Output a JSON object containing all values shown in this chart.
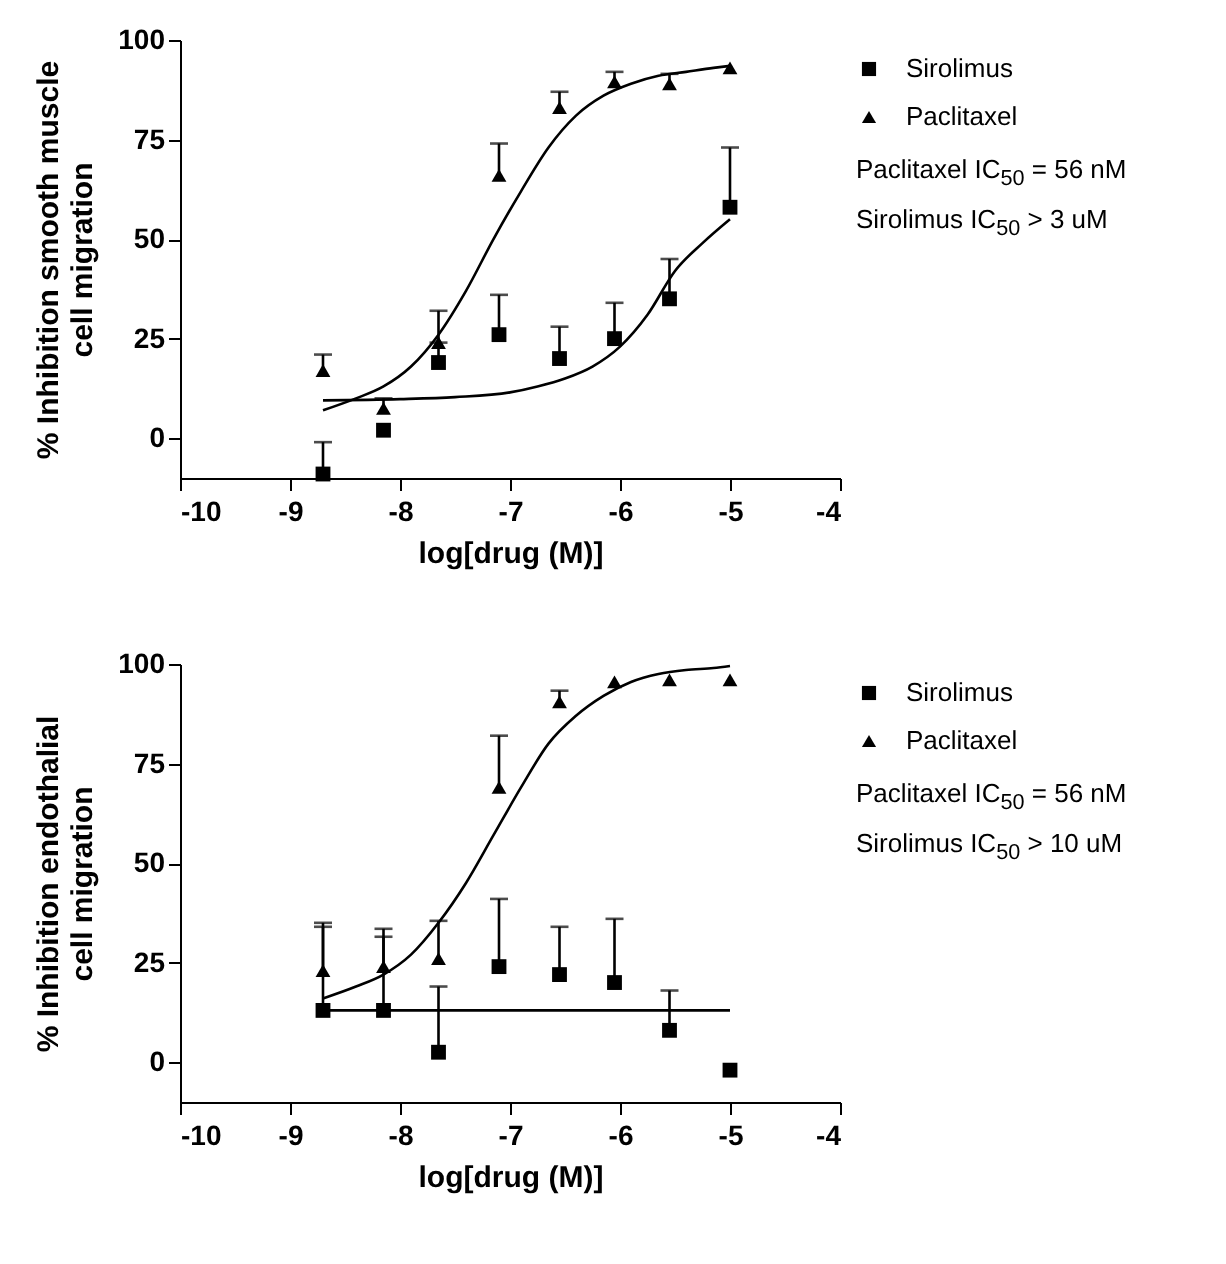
{
  "chart_data": [
    {
      "type": "scatter",
      "xlabel": "log[drug (M)]",
      "ylabel": "% Inhibition smooth muscle cell migration",
      "xlim": [
        -10,
        -4
      ],
      "xticks": [
        -10,
        -9,
        -8,
        -7,
        -6,
        -5,
        -4
      ],
      "ylim": [
        -10,
        100
      ],
      "yticks": [
        0,
        25,
        50,
        75,
        100
      ],
      "grid": false,
      "legend": "right",
      "annotations": [
        "Paclitaxel IC$_{50}$ = 56 nM",
        "Sirolimus IC$_{50}$ > 3 uM"
      ],
      "series": [
        {
          "name": "Sirolimus",
          "color": "#000000",
          "marker": "square",
          "x": [
            -8.7,
            -8.15,
            -7.65,
            -7.1,
            -6.55,
            -6.05,
            -5.55,
            -5.0
          ],
          "values": [
            -9,
            2,
            19,
            26,
            20,
            25,
            35,
            58
          ],
          "errors": [
            [
              -9,
              -1
            ],
            null,
            [
              19,
              24
            ],
            [
              26,
              36
            ],
            [
              20,
              28
            ],
            [
              25,
              34
            ],
            [
              35,
              45
            ],
            [
              58,
              73
            ]
          ]
        },
        {
          "name": "Paclitaxel",
          "color": "#000000",
          "marker": "triangle",
          "x": [
            -8.7,
            -8.15,
            -7.65,
            -7.1,
            -6.55,
            -6.05,
            -5.55,
            -5.0
          ],
          "values": [
            17,
            7.5,
            24,
            66,
            83,
            89.5,
            89,
            93
          ],
          "errors": [
            [
              17,
              21
            ],
            [
              7.5,
              10
            ],
            [
              24,
              32
            ],
            [
              66,
              74
            ],
            [
              83,
              87
            ],
            [
              89.5,
              92
            ],
            [
              89,
              91.5
            ],
            null
          ]
        },
        {
          "type": "line",
          "color": "#000000",
          "x": [
            -8.7,
            -8.0,
            -7.5,
            -7.0,
            -6.75,
            -6.5,
            -6.25,
            -6.0,
            -5.75,
            -5.5,
            -5.25,
            -5.0
          ],
          "values": [
            9.5,
            9.8,
            10.3,
            11.5,
            13,
            15,
            18,
            23,
            31,
            42,
            49,
            55
          ]
        },
        {
          "type": "line",
          "color": "#000000",
          "x": [
            -8.7,
            -8.4,
            -8.15,
            -7.9,
            -7.65,
            -7.4,
            -7.15,
            -6.9,
            -6.65,
            -6.4,
            -6.15,
            -5.9,
            -5.65,
            -5.4,
            -5.15,
            -5.0
          ],
          "values": [
            7,
            10,
            13,
            18,
            26,
            37,
            50,
            62,
            73,
            81,
            86,
            89,
            91,
            92,
            93,
            93.5
          ]
        }
      ]
    },
    {
      "type": "scatter",
      "xlabel": "log[drug (M)]",
      "ylabel": "% Inhibition endothalial cell migration",
      "xlim": [
        -10,
        -4
      ],
      "xticks": [
        -10,
        -9,
        -8,
        -7,
        -6,
        -5,
        -4
      ],
      "ylim": [
        -10,
        100
      ],
      "yticks": [
        0,
        25,
        50,
        75,
        100
      ],
      "grid": false,
      "legend": "right",
      "annotations": [
        "Paclitaxel IC$_{50}$ = 56 nM",
        "Sirolimus IC$_{50}$ > 10 uM"
      ],
      "series": [
        {
          "name": "Sirolimus",
          "color": "#000000",
          "marker": "square",
          "x": [
            -8.7,
            -8.15,
            -7.65,
            -7.1,
            -6.55,
            -6.05,
            -5.55,
            -5.0
          ],
          "values": [
            13,
            13,
            2.5,
            24,
            22,
            20,
            8,
            -2
          ],
          "errors": [
            [
              13,
              34
            ],
            [
              13,
              31.5
            ],
            [
              2.5,
              19
            ],
            [
              24,
              41
            ],
            [
              22,
              34
            ],
            [
              20,
              36
            ],
            [
              8,
              18
            ],
            null
          ]
        },
        {
          "name": "Paclitaxel",
          "color": "#000000",
          "marker": "triangle",
          "x": [
            -8.7,
            -8.15,
            -7.65,
            -7.1,
            -6.55,
            -6.05,
            -5.55,
            -5.0
          ],
          "values": [
            23,
            24,
            26,
            69,
            90.5,
            95.5,
            96,
            96
          ],
          "errors": [
            [
              23,
              35
            ],
            [
              24,
              33.5
            ],
            [
              26,
              35.5
            ],
            [
              69,
              82
            ],
            [
              90.5,
              93.3
            ],
            null,
            null,
            null
          ]
        },
        {
          "type": "line",
          "color": "#000000",
          "x": [
            -8.7,
            -5.0
          ],
          "values": [
            13,
            13
          ]
        },
        {
          "type": "line",
          "color": "#000000",
          "x": [
            -8.7,
            -8.4,
            -8.15,
            -7.9,
            -7.65,
            -7.4,
            -7.15,
            -6.9,
            -6.65,
            -6.4,
            -6.15,
            -5.9,
            -5.65,
            -5.4,
            -5.15,
            -5.0
          ],
          "values": [
            16,
            19,
            22,
            27,
            35,
            45,
            57,
            69,
            80,
            87,
            92,
            95.5,
            97.5,
            98.5,
            99,
            99.5
          ]
        }
      ]
    }
  ]
}
